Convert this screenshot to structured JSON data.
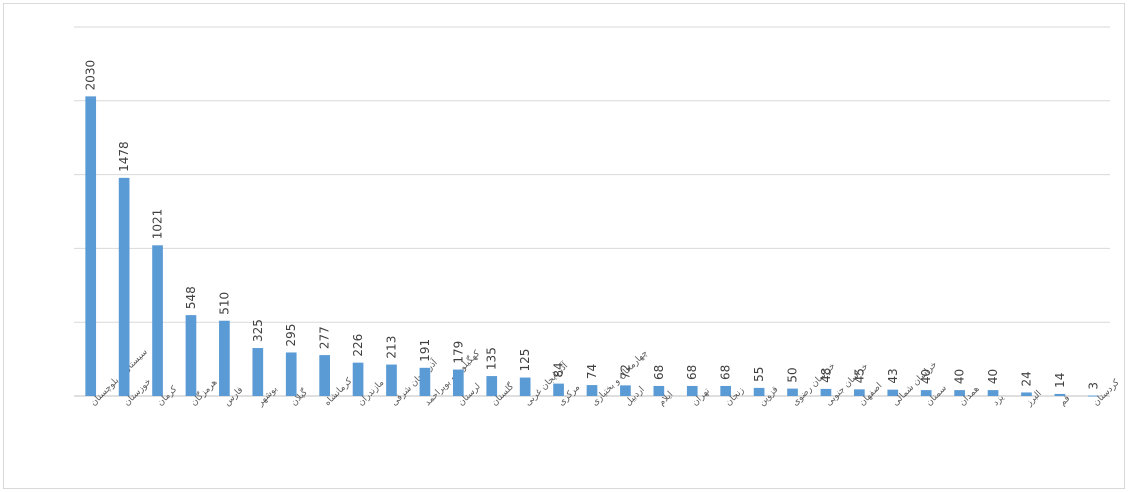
{
  "chart_data": {
    "type": "bar",
    "title": "",
    "xlabel": "",
    "ylabel": "",
    "ylim": [
      0,
      2500
    ],
    "grid": true,
    "legend": "none",
    "bar_color": "#5b9bd5",
    "categories": [
      "سیستان و بلوچستان",
      "خوزستان",
      "کرمان",
      "هرمزگان",
      "فارس",
      "بوشهر",
      "گیلان",
      "کرمانشاه",
      "مازندران",
      "آذربایجان شرقی",
      "کهگیلویه و بویراحمد",
      "لرستان",
      "گلستان",
      "آذربایجان غربی",
      "مرکزی",
      "چهارمحال و بختیاری",
      "اردبیل",
      "ایلام",
      "تهران",
      "زنجان",
      "قزوین",
      "خراسان رضوی",
      "خراسان جنوبی",
      "اصفهان",
      "خراسان شمالی",
      "سمنان",
      "همدان",
      "یزد",
      "البرز",
      "قم",
      "کردستان"
    ],
    "values": [
      2030,
      1478,
      1021,
      548,
      510,
      325,
      295,
      277,
      226,
      213,
      191,
      179,
      135,
      125,
      84,
      74,
      72,
      68,
      68,
      68,
      55,
      50,
      48,
      45,
      43,
      40,
      40,
      40,
      24,
      14,
      3
    ]
  }
}
